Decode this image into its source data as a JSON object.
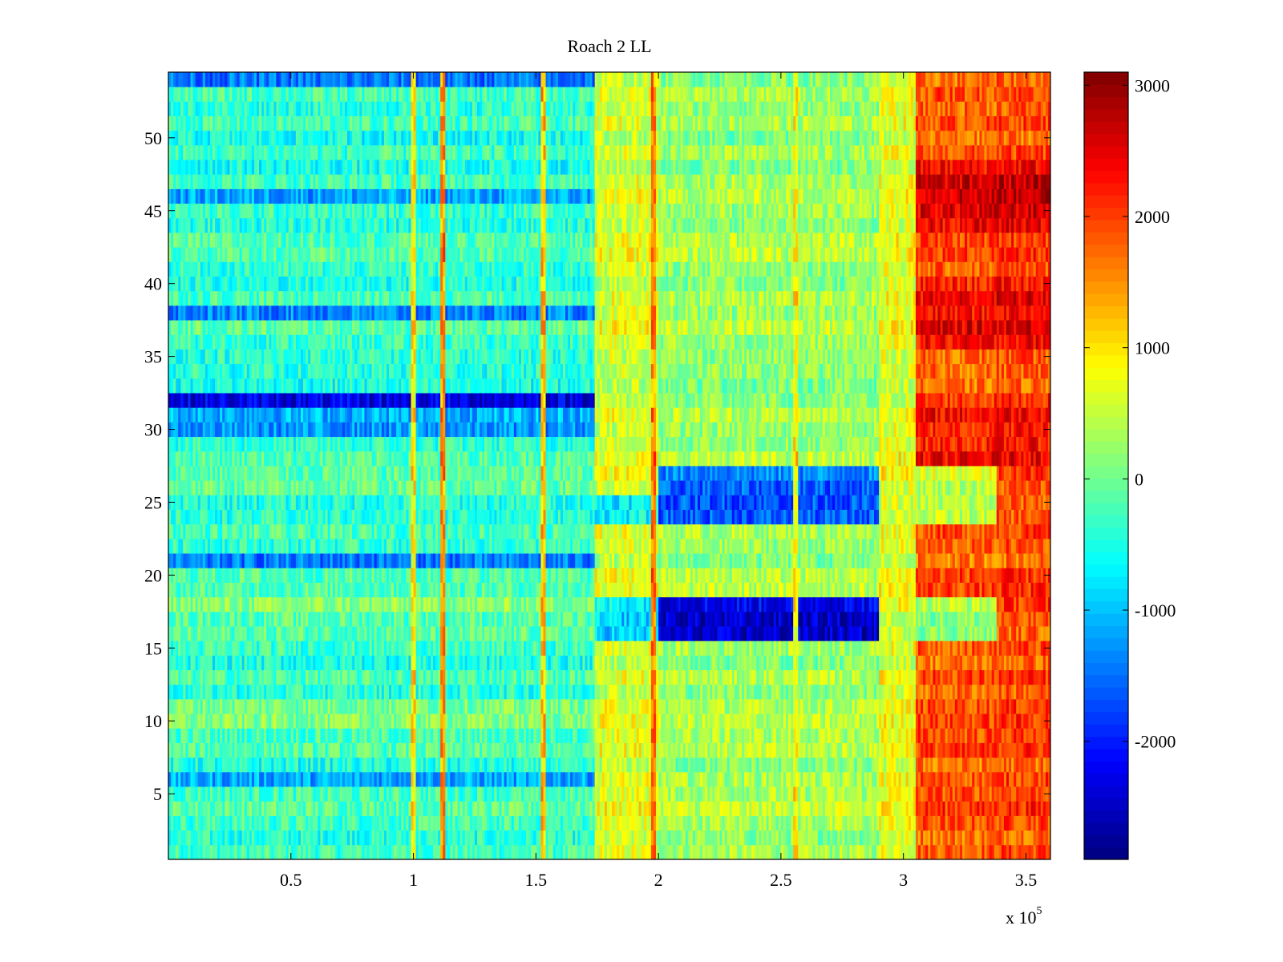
{
  "chart_data": {
    "type": "heatmap",
    "title": "Roach 2 LL",
    "xlabel": "",
    "ylabel": "",
    "x_multiplier_label": "x 10",
    "x_multiplier_exponent": "5",
    "xlim": [
      0,
      3.6
    ],
    "ylim": [
      0.5,
      54.5
    ],
    "xticks": [
      {
        "value": 0.5,
        "label": "0.5"
      },
      {
        "value": 1,
        "label": "1"
      },
      {
        "value": 1.5,
        "label": "1.5"
      },
      {
        "value": 2,
        "label": "2"
      },
      {
        "value": 2.5,
        "label": "2.5"
      },
      {
        "value": 3,
        "label": "3"
      },
      {
        "value": 3.5,
        "label": "3.5"
      }
    ],
    "yticks": [
      {
        "value": 5,
        "label": "5"
      },
      {
        "value": 10,
        "label": "10"
      },
      {
        "value": 15,
        "label": "15"
      },
      {
        "value": 20,
        "label": "20"
      },
      {
        "value": 25,
        "label": "25"
      },
      {
        "value": 30,
        "label": "30"
      },
      {
        "value": 35,
        "label": "35"
      },
      {
        "value": 40,
        "label": "40"
      },
      {
        "value": 45,
        "label": "45"
      },
      {
        "value": 50,
        "label": "50"
      }
    ],
    "colormap": "jet",
    "clim": [
      -2900,
      3100
    ],
    "colorbar_ticks": [
      {
        "value": 3000,
        "label": "3000"
      },
      {
        "value": 2000,
        "label": "2000"
      },
      {
        "value": 1000,
        "label": "1000"
      },
      {
        "value": 0,
        "label": "0"
      },
      {
        "value": -1000,
        "label": "-1000"
      },
      {
        "value": -2000,
        "label": "-2000"
      }
    ],
    "rows": 54,
    "columns": 360,
    "segments": [
      {
        "x_start": 0,
        "x_end": 1.74,
        "base_value": -350
      },
      {
        "x_start": 1.74,
        "x_end": 2.0,
        "base_value": 600
      },
      {
        "x_start": 2.0,
        "x_end": 2.9,
        "base_value": 250
      },
      {
        "x_start": 2.9,
        "x_end": 3.05,
        "base_value": 700
      },
      {
        "x_start": 3.05,
        "x_end": 3.38,
        "base_value": 1800
      },
      {
        "x_start": 3.38,
        "x_end": 3.6,
        "base_value": 1900
      }
    ],
    "row_offsets": [
      {
        "rows": [
          32
        ],
        "value": -1800,
        "x_end": 1.74
      },
      {
        "rows": [
          30,
          31
        ],
        "value": -900,
        "x_end": 1.74
      },
      {
        "rows": [
          38
        ],
        "value": -1000,
        "x_end": 1.74
      },
      {
        "rows": [
          46
        ],
        "value": -1000,
        "x_end": 1.74
      },
      {
        "rows": [
          21
        ],
        "value": -900,
        "x_end": 1.74
      },
      {
        "rows": [
          54
        ],
        "value": -1000,
        "x_end": 1.74
      },
      {
        "rows": [
          6
        ],
        "value": -900,
        "x_end": 1.74
      },
      {
        "rows": [
          16,
          17,
          18
        ],
        "value": 350,
        "x_end": 1.74
      },
      {
        "rows": [
          10,
          11
        ],
        "value": 300,
        "x_end": 1.74
      },
      {
        "rows": [
          26
        ],
        "value": 350,
        "x_end": 1.74
      },
      {
        "rows": [
          16,
          17,
          18
        ],
        "value": -2600,
        "x_start": 2.0,
        "x_end": 2.9
      },
      {
        "rows": [
          24,
          25,
          26,
          27
        ],
        "value": -1800,
        "x_start": 2.0,
        "x_end": 2.9
      },
      {
        "rows": [
          16,
          17,
          18
        ],
        "value": -1500,
        "x_start": 3.05,
        "x_end": 3.38
      },
      {
        "rows": [
          24,
          25,
          26,
          27
        ],
        "value": -1300,
        "x_start": 3.05,
        "x_end": 3.38
      },
      {
        "rows": [
          16,
          17,
          18
        ],
        "value": -1400,
        "x_start": 1.74,
        "x_end": 2.0
      },
      {
        "rows": [
          24,
          25
        ],
        "value": -1200,
        "x_start": 1.74,
        "x_end": 2.0
      },
      {
        "rows": [
          44,
          45,
          46,
          47,
          48
        ],
        "value": 700,
        "x_start": 3.05,
        "x_end": 3.6
      },
      {
        "rows": [
          36,
          37,
          38,
          39,
          40
        ],
        "value": 500,
        "x_start": 3.05,
        "x_end": 3.6
      },
      {
        "rows": [
          28,
          29,
          30,
          31,
          32
        ],
        "value": 400,
        "x_start": 3.05,
        "x_end": 3.6
      }
    ],
    "vertical_streaks": [
      {
        "x": 1.12,
        "value": 1500
      },
      {
        "x": 1.0,
        "value": 900
      },
      {
        "x": 1.53,
        "value": 1200
      },
      {
        "x": 1.98,
        "value": 1600
      },
      {
        "x": 2.56,
        "value": 800
      }
    ]
  }
}
